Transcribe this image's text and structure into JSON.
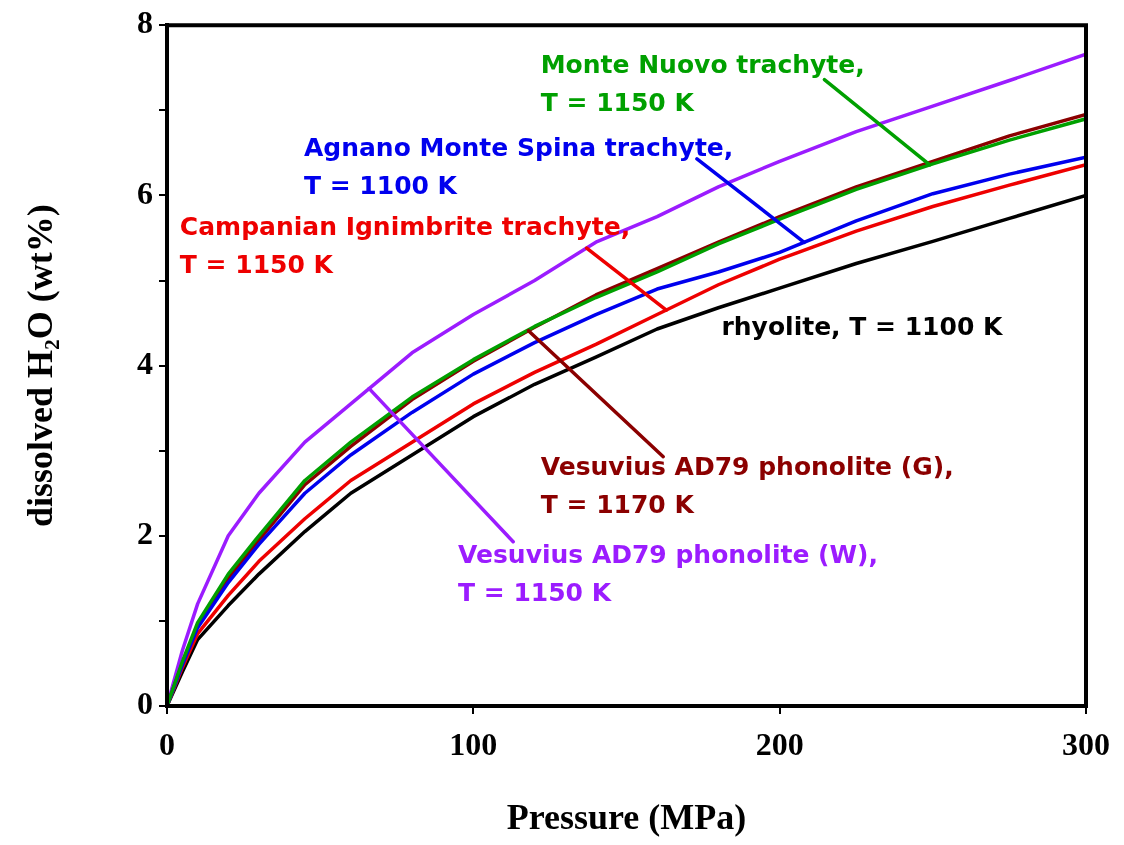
{
  "chart_data": {
    "type": "line",
    "xlabel": "Pressure (MPa)",
    "ylabel": "dissolved H₂O (wt%)",
    "x": [
      0,
      5,
      10,
      20,
      30,
      45,
      60,
      80,
      100,
      120,
      140,
      160,
      180,
      200,
      225,
      250,
      275,
      300
    ],
    "xlim": [
      0,
      300
    ],
    "xticks": [
      0,
      100,
      200,
      300
    ],
    "ylim": [
      0,
      8
    ],
    "yticks": [
      0,
      {
        "value": 1,
        "label": null
      },
      2,
      {
        "value": 3,
        "label": null
      },
      4,
      {
        "value": 5,
        "label": null
      },
      6,
      {
        "value": 7,
        "label": null
      },
      8
    ],
    "grid": false,
    "legend": false,
    "marker": "none",
    "line_style": "solid",
    "series": [
      {
        "name": "Monte Nuovo trachyte,\nT = 1150 K",
        "color": "#00a000",
        "values": [
          0,
          0.52,
          0.98,
          1.55,
          2.0,
          2.65,
          3.1,
          3.63,
          4.07,
          4.46,
          4.8,
          5.1,
          5.43,
          5.72,
          6.07,
          6.37,
          6.65,
          6.9
        ]
      },
      {
        "name": "Agnano Monte Spina trachyte,\nT = 1100 K",
        "color": "#0000ee",
        "values": [
          0,
          0.48,
          0.92,
          1.45,
          1.9,
          2.5,
          2.95,
          3.45,
          3.9,
          4.27,
          4.6,
          4.9,
          5.1,
          5.33,
          5.7,
          6.02,
          6.25,
          6.45
        ]
      },
      {
        "name": "Campanian Ignimbrite trachyte,\nT = 1150 K",
        "color": "#ee0000",
        "values": [
          0,
          0.45,
          0.85,
          1.3,
          1.7,
          2.2,
          2.65,
          3.1,
          3.55,
          3.92,
          4.25,
          4.6,
          4.95,
          5.25,
          5.58,
          5.87,
          6.12,
          6.36
        ]
      },
      {
        "name": "rhyolite, T = 1100 K",
        "color": "#000000",
        "values": [
          0,
          0.4,
          0.78,
          1.18,
          1.55,
          2.05,
          2.5,
          2.95,
          3.4,
          3.78,
          4.1,
          4.43,
          4.68,
          4.91,
          5.2,
          5.46,
          5.73,
          6.0
        ]
      },
      {
        "name": "Vesuvius AD79 phonolite (G),\nT = 1170 K",
        "color": "#8b0000",
        "values": [
          0,
          0.5,
          0.95,
          1.5,
          1.95,
          2.6,
          3.05,
          3.6,
          4.05,
          4.45,
          4.83,
          5.14,
          5.45,
          5.75,
          6.1,
          6.4,
          6.7,
          6.95
        ]
      },
      {
        "name": "Vesuvius AD79 phonolite (W),\nT = 1150 K",
        "color": "#9b1cff",
        "values": [
          0,
          0.65,
          1.2,
          2.0,
          2.5,
          3.1,
          3.55,
          4.15,
          4.6,
          5.0,
          5.45,
          5.75,
          6.1,
          6.4,
          6.75,
          7.05,
          7.35,
          7.66
        ]
      }
    ]
  }
}
